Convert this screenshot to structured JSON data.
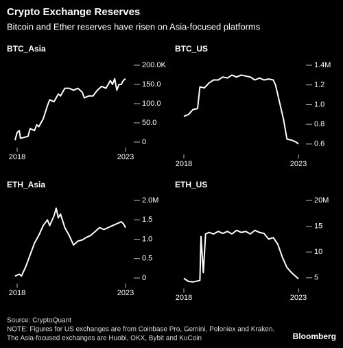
{
  "title": "Crypto Exchange Reserves",
  "subtitle": "Bitcoin and Ether reserves have risen on Asia-focused platforms",
  "source": "Source: CryptoQuant",
  "note": "NOTE: Figures for US exchanges are from Coinbase Pro, Gemini, Poloniex and Kraken.",
  "note2": "The Asia-focused exchanges are Huobi, OKX, Bybit and KuCoin",
  "brand": "Bloomberg",
  "chart_data": [
    {
      "type": "line",
      "title": "BTC_Asia",
      "color": "#ffffff",
      "x": [
        2017.9,
        2018.0,
        2018.1,
        2018.15,
        2018.3,
        2018.5,
        2018.6,
        2018.8,
        2018.9,
        2019.0,
        2019.2,
        2019.4,
        2019.5,
        2019.7,
        2019.9,
        2020.0,
        2020.2,
        2020.4,
        2020.6,
        2020.8,
        2021.0,
        2021.1,
        2021.3,
        2021.5,
        2021.7,
        2021.9,
        2022.1,
        2022.3,
        2022.4,
        2022.5,
        2022.6,
        2022.7,
        2022.8,
        2022.9,
        2023.0
      ],
      "values": [
        5,
        25,
        30,
        10,
        12,
        15,
        35,
        30,
        45,
        40,
        60,
        95,
        110,
        105,
        125,
        120,
        140,
        140,
        135,
        140,
        130,
        115,
        120,
        120,
        135,
        145,
        140,
        160,
        150,
        165,
        135,
        150,
        150,
        160,
        165
      ],
      "xlim": [
        2017.8,
        2023.2
      ],
      "xticks": [
        2018,
        2023
      ],
      "ylim": [
        0,
        200
      ],
      "yticks": [
        0,
        {
          "value": 50,
          "label": "50.0"
        },
        {
          "value": 100,
          "label": "100.0"
        },
        {
          "value": 150,
          "label": "150.0"
        },
        {
          "value": 200,
          "label": "200.0K"
        }
      ]
    },
    {
      "type": "line",
      "title": "BTC_US",
      "color": "#ffffff",
      "x": [
        2018.0,
        2018.2,
        2018.4,
        2018.6,
        2018.7,
        2018.9,
        2019.1,
        2019.3,
        2019.5,
        2019.7,
        2019.9,
        2020.1,
        2020.3,
        2020.5,
        2020.7,
        2020.9,
        2021.1,
        2021.3,
        2021.5,
        2021.7,
        2021.9,
        2022.0,
        2022.2,
        2022.35,
        2022.5,
        2022.7,
        2022.9,
        2023.0
      ],
      "values": [
        0.88,
        0.9,
        0.95,
        0.96,
        1.18,
        1.17,
        1.22,
        1.25,
        1.25,
        1.28,
        1.27,
        1.3,
        1.28,
        1.3,
        1.29,
        1.28,
        1.25,
        1.27,
        1.25,
        1.26,
        1.25,
        1.2,
        1.0,
        0.85,
        0.65,
        0.64,
        0.62,
        0.6
      ],
      "xlim": [
        2017.8,
        2023.2
      ],
      "xticks": [
        2018,
        2023
      ],
      "ylim": [
        0.55,
        1.4
      ],
      "yticks": [
        0.6,
        0.8,
        {
          "value": 1,
          "label": "1.0"
        },
        1.2,
        {
          "value": 1.4,
          "label": "1.4M"
        }
      ]
    },
    {
      "type": "line",
      "title": "ETH_Asia",
      "color": "#ffffff",
      "x": [
        2017.9,
        2018.1,
        2018.2,
        2018.4,
        2018.6,
        2018.8,
        2019.0,
        2019.2,
        2019.4,
        2019.5,
        2019.7,
        2019.8,
        2019.9,
        2020.0,
        2020.2,
        2020.4,
        2020.6,
        2020.8,
        2021.0,
        2021.2,
        2021.4,
        2021.6,
        2021.8,
        2022.0,
        2022.2,
        2022.4,
        2022.6,
        2022.8,
        2022.9,
        2023.0
      ],
      "values": [
        0.05,
        0.1,
        0.05,
        0.3,
        0.6,
        0.9,
        1.1,
        1.35,
        1.5,
        1.35,
        1.6,
        1.8,
        1.55,
        1.65,
        1.3,
        1.1,
        0.85,
        0.95,
        0.98,
        1.05,
        1.1,
        1.2,
        1.3,
        1.25,
        1.3,
        1.35,
        1.4,
        1.45,
        1.4,
        1.3
      ],
      "xlim": [
        2017.8,
        2023.2
      ],
      "xticks": [
        2018,
        2023
      ],
      "ylim": [
        0,
        2
      ],
      "yticks": [
        0,
        0.5,
        {
          "value": 1,
          "label": "1.0"
        },
        1.5,
        {
          "value": 2,
          "label": "2.0M"
        }
      ]
    },
    {
      "type": "line",
      "title": "ETH_US",
      "color": "#ffffff",
      "x": [
        2018.0,
        2018.2,
        2018.4,
        2018.6,
        2018.7,
        2018.75,
        2018.85,
        2018.95,
        2019.1,
        2019.3,
        2019.5,
        2019.7,
        2019.9,
        2020.1,
        2020.3,
        2020.5,
        2020.7,
        2020.9,
        2021.1,
        2021.3,
        2021.5,
        2021.7,
        2021.9,
        2022.1,
        2022.3,
        2022.5,
        2022.7,
        2022.9,
        2023.0
      ],
      "values": [
        4.9,
        4.3,
        4.2,
        4.4,
        4.5,
        13,
        6,
        13.5,
        13.8,
        13.5,
        14,
        13.6,
        14,
        13.5,
        14.2,
        13.8,
        14,
        13.5,
        14.2,
        13.8,
        13.6,
        12.5,
        12.8,
        11.5,
        9,
        7,
        6,
        5.2,
        4.8
      ],
      "xlim": [
        2017.8,
        2023.2
      ],
      "xticks": [
        2018,
        2023
      ],
      "ylim": [
        4,
        20
      ],
      "yticks": [
        5,
        10,
        15,
        {
          "value": 20,
          "label": "20M"
        }
      ]
    }
  ]
}
